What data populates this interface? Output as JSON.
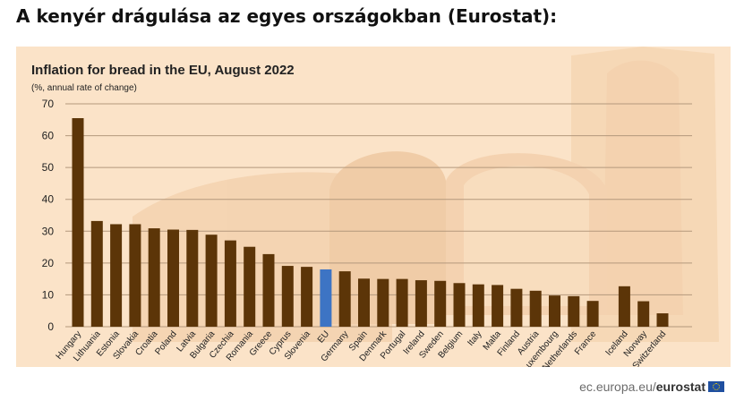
{
  "page": {
    "heading": "A kenyér drágulása az egyes országokban (Eurostat):",
    "source": {
      "domain": "ec.europa.eu/",
      "brand": "eurostat"
    }
  },
  "chart_data": {
    "type": "bar",
    "title": "Inflation for bread in the EU, August 2022",
    "subtitle": "(%, annual rate of change)",
    "xlabel": "",
    "ylabel": "",
    "ylim": [
      0,
      70
    ],
    "yticks": [
      0,
      10,
      20,
      30,
      40,
      50,
      60,
      70
    ],
    "grid": true,
    "categories": [
      "Hungary",
      "Lithuania",
      "Estonia",
      "Slovakia",
      "Croatia",
      "Poland",
      "Latvia",
      "Bulgaria",
      "Czechia",
      "Romania",
      "Greece",
      "Cyprus",
      "Slovenia",
      "EU",
      "Germany",
      "Spain",
      "Denmark",
      "Portugal",
      "Ireland",
      "Sweden",
      "Belgium",
      "Italy",
      "Malta",
      "Finland",
      "Austria",
      "Luxembourg",
      "Netherlands",
      "France",
      "Iceland",
      "Norway",
      "Switzerland"
    ],
    "values": [
      65.5,
      33.2,
      32.2,
      32.2,
      30.9,
      30.5,
      30.4,
      28.9,
      27.1,
      25.1,
      22.8,
      19.1,
      18.8,
      18.0,
      17.4,
      15.1,
      15.0,
      15.0,
      14.6,
      14.4,
      13.7,
      13.3,
      13.1,
      11.9,
      11.3,
      9.8,
      9.6,
      8.1,
      12.7,
      8.0,
      4.2
    ],
    "highlight": "EU",
    "colors": {
      "bar": "#5c3508",
      "highlight": "#3d74c4",
      "grid": "#b3987c",
      "axis_text": "#222222",
      "background": "#fbe3c8"
    }
  }
}
